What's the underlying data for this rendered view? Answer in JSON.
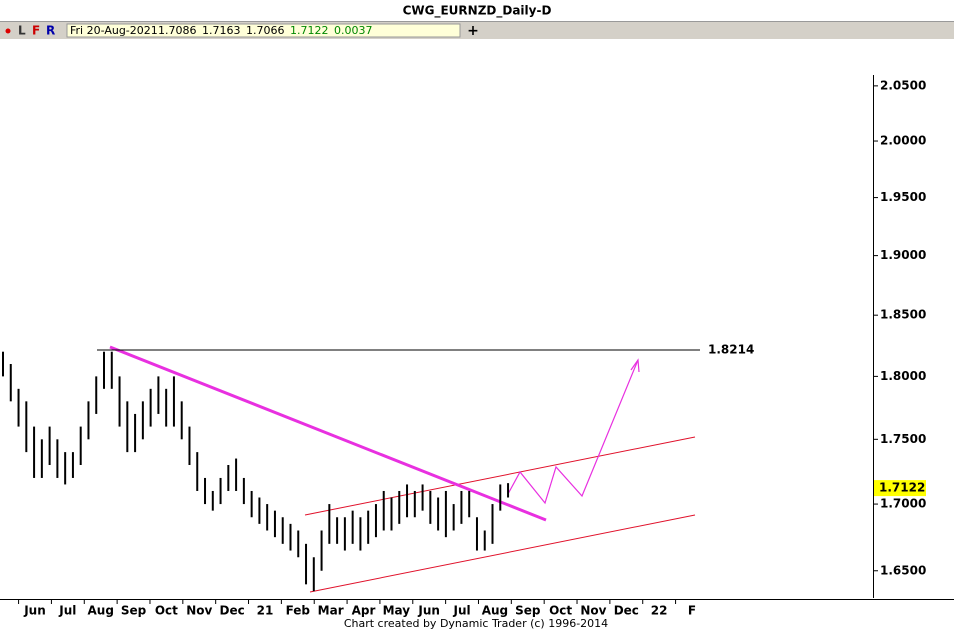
{
  "chart_data": {
    "type": "hlbar",
    "title": "CWG_EURNZD_Daily-D",
    "toolbar": {
      "buttons": [
        "L",
        "F",
        "R"
      ],
      "date": "Fri 20-Aug-2021",
      "open": "1.7086",
      "high": "1.7163",
      "low": "1.7066",
      "close": "1.7122",
      "change": "0.0037"
    },
    "footer": "Chart created by Dynamic Trader  (c) 1996-2014",
    "categories": [
      "Jun",
      "Jul",
      "Aug",
      "Sep",
      "Oct",
      "Nov",
      "Dec",
      "21",
      "Feb",
      "Mar",
      "Apr",
      "May",
      "Jun",
      "Jul",
      "Aug",
      "Sep",
      "Oct",
      "Nov",
      "Dec",
      "22",
      "F"
    ],
    "highs": [
      1.82,
      1.81,
      1.79,
      1.78,
      1.76,
      1.75,
      1.76,
      1.75,
      1.74,
      1.74,
      1.76,
      1.78,
      1.8,
      1.82,
      1.82,
      1.8,
      1.78,
      1.77,
      1.78,
      1.79,
      1.8,
      1.79,
      1.8,
      1.78,
      1.76,
      1.74,
      1.72,
      1.71,
      1.72,
      1.73,
      1.735,
      1.72,
      1.71,
      1.705,
      1.7,
      1.695,
      1.69,
      1.685,
      1.68,
      1.67,
      1.66,
      1.68,
      1.7,
      1.69,
      1.69,
      1.695,
      1.69,
      1.695,
      1.7,
      1.71,
      1.705,
      1.71,
      1.715,
      1.71,
      1.715,
      1.71,
      1.705,
      1.71,
      1.7,
      1.71,
      1.71,
      1.69,
      1.68,
      1.7,
      1.715,
      1.716
    ],
    "lows": [
      1.8,
      1.78,
      1.76,
      1.74,
      1.72,
      1.72,
      1.73,
      1.72,
      1.715,
      1.72,
      1.73,
      1.75,
      1.77,
      1.79,
      1.79,
      1.76,
      1.74,
      1.74,
      1.75,
      1.76,
      1.77,
      1.76,
      1.76,
      1.75,
      1.73,
      1.71,
      1.7,
      1.695,
      1.7,
      1.71,
      1.71,
      1.7,
      1.69,
      1.685,
      1.68,
      1.675,
      1.67,
      1.665,
      1.66,
      1.64,
      1.635,
      1.65,
      1.67,
      1.67,
      1.665,
      1.67,
      1.665,
      1.67,
      1.675,
      1.68,
      1.68,
      1.685,
      1.69,
      1.69,
      1.695,
      1.685,
      1.68,
      1.675,
      1.68,
      1.685,
      1.69,
      1.665,
      1.665,
      1.67,
      1.695,
      1.705
    ],
    "color": "#000000",
    "log_scale": true,
    "ylim": [
      1.63,
      2.06
    ],
    "yticks": [
      {
        "value": 1.65,
        "label": "1.6500"
      },
      {
        "value": 1.7,
        "label": "1.7000"
      },
      {
        "value": 1.75,
        "label": "1.7500"
      },
      {
        "value": 1.8,
        "label": "1.8000"
      },
      {
        "value": 1.85,
        "label": "1.8500"
      },
      {
        "value": 1.9,
        "label": "1.9000"
      },
      {
        "value": 1.95,
        "label": "1.9500"
      },
      {
        "value": 2.0,
        "label": "2.0000"
      },
      {
        "value": 2.05,
        "label": "2.0500"
      }
    ],
    "level": {
      "value": 1.8214,
      "label": "1.8214"
    },
    "last_price": {
      "value": 1.7122,
      "label": "1.7122"
    }
  }
}
